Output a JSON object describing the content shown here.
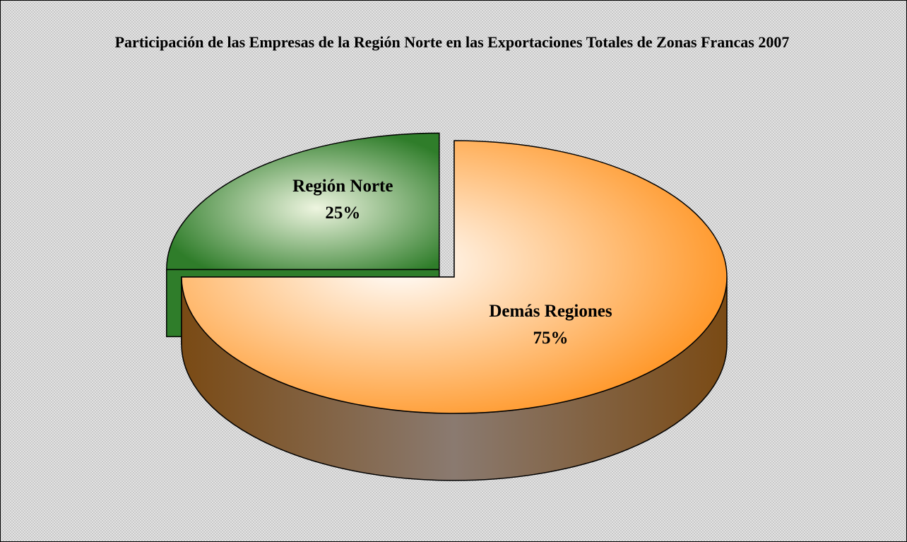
{
  "chart_data": {
    "type": "pie",
    "title": "Participación de las Empresas de la Región Norte en las Exportaciones Totales de Zonas Francas 2007",
    "categories": [
      "Región Norte",
      "Demás Regiones"
    ],
    "values": [
      25,
      75
    ],
    "value_labels": [
      "25%",
      "75%"
    ],
    "colors": [
      "#2f7d2a",
      "#ff9a2e"
    ]
  }
}
